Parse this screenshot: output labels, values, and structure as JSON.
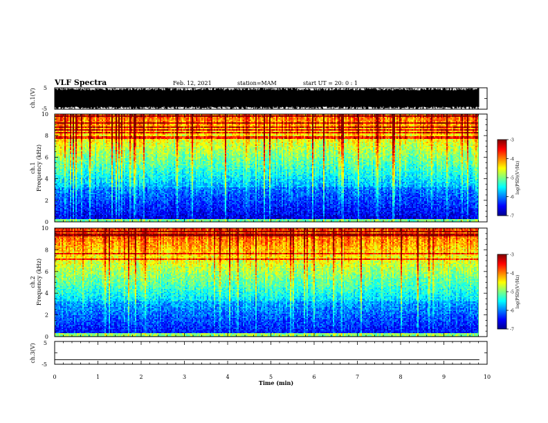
{
  "header": {
    "title": "VLF Spectra",
    "date": "Feb. 12, 2021",
    "station": "station=MAM",
    "start": "start  UT =   20: 0  : 1"
  },
  "chart_data": [
    {
      "type": "line",
      "panel": "ch1-waveform",
      "ylabel": "ch.1(V)",
      "ylim": [
        -5,
        5
      ],
      "yticks": [
        "5",
        "-5"
      ],
      "note": "dense waveform filling nearly full range"
    },
    {
      "type": "heatmap",
      "panel": "ch1-spectrogram",
      "ylabel_line1": "ch.1",
      "ylabel_line2": "Frequency  (kHz)",
      "ylim": [
        0,
        10
      ],
      "yticks": [
        "0",
        "2",
        "4",
        "6",
        "8",
        "10"
      ],
      "colorbar": {
        "label": "log(PSD)(V²/Hz)",
        "range": [
          -7,
          -3
        ],
        "ticks": [
          "-3",
          "-4",
          "-5",
          "-6",
          "-7"
        ]
      }
    },
    {
      "type": "heatmap",
      "panel": "ch2-spectrogram",
      "ylabel_line1": "ch.2",
      "ylabel_line2": "Frequency  (kHz)",
      "ylim": [
        0,
        10
      ],
      "yticks": [
        "0",
        "2",
        "4",
        "6",
        "8",
        "10"
      ],
      "colorbar": {
        "label": "log(PSD)(V²/Hz)",
        "range": [
          -7,
          -3
        ],
        "ticks": [
          "-3",
          "-4",
          "-5",
          "-6",
          "-7"
        ]
      }
    },
    {
      "type": "line",
      "panel": "ch3-waveform",
      "ylabel": "ch.3(V)",
      "ylim": [
        -5,
        5
      ],
      "yticks": [
        "5",
        "-5"
      ],
      "note": "flat line near -3 V"
    }
  ],
  "xaxis": {
    "label": "Time  (min)",
    "range": [
      0,
      10
    ],
    "ticks": [
      "0",
      "1",
      "2",
      "3",
      "4",
      "5",
      "6",
      "7",
      "8",
      "9",
      "10"
    ],
    "data_end": 9.82
  }
}
